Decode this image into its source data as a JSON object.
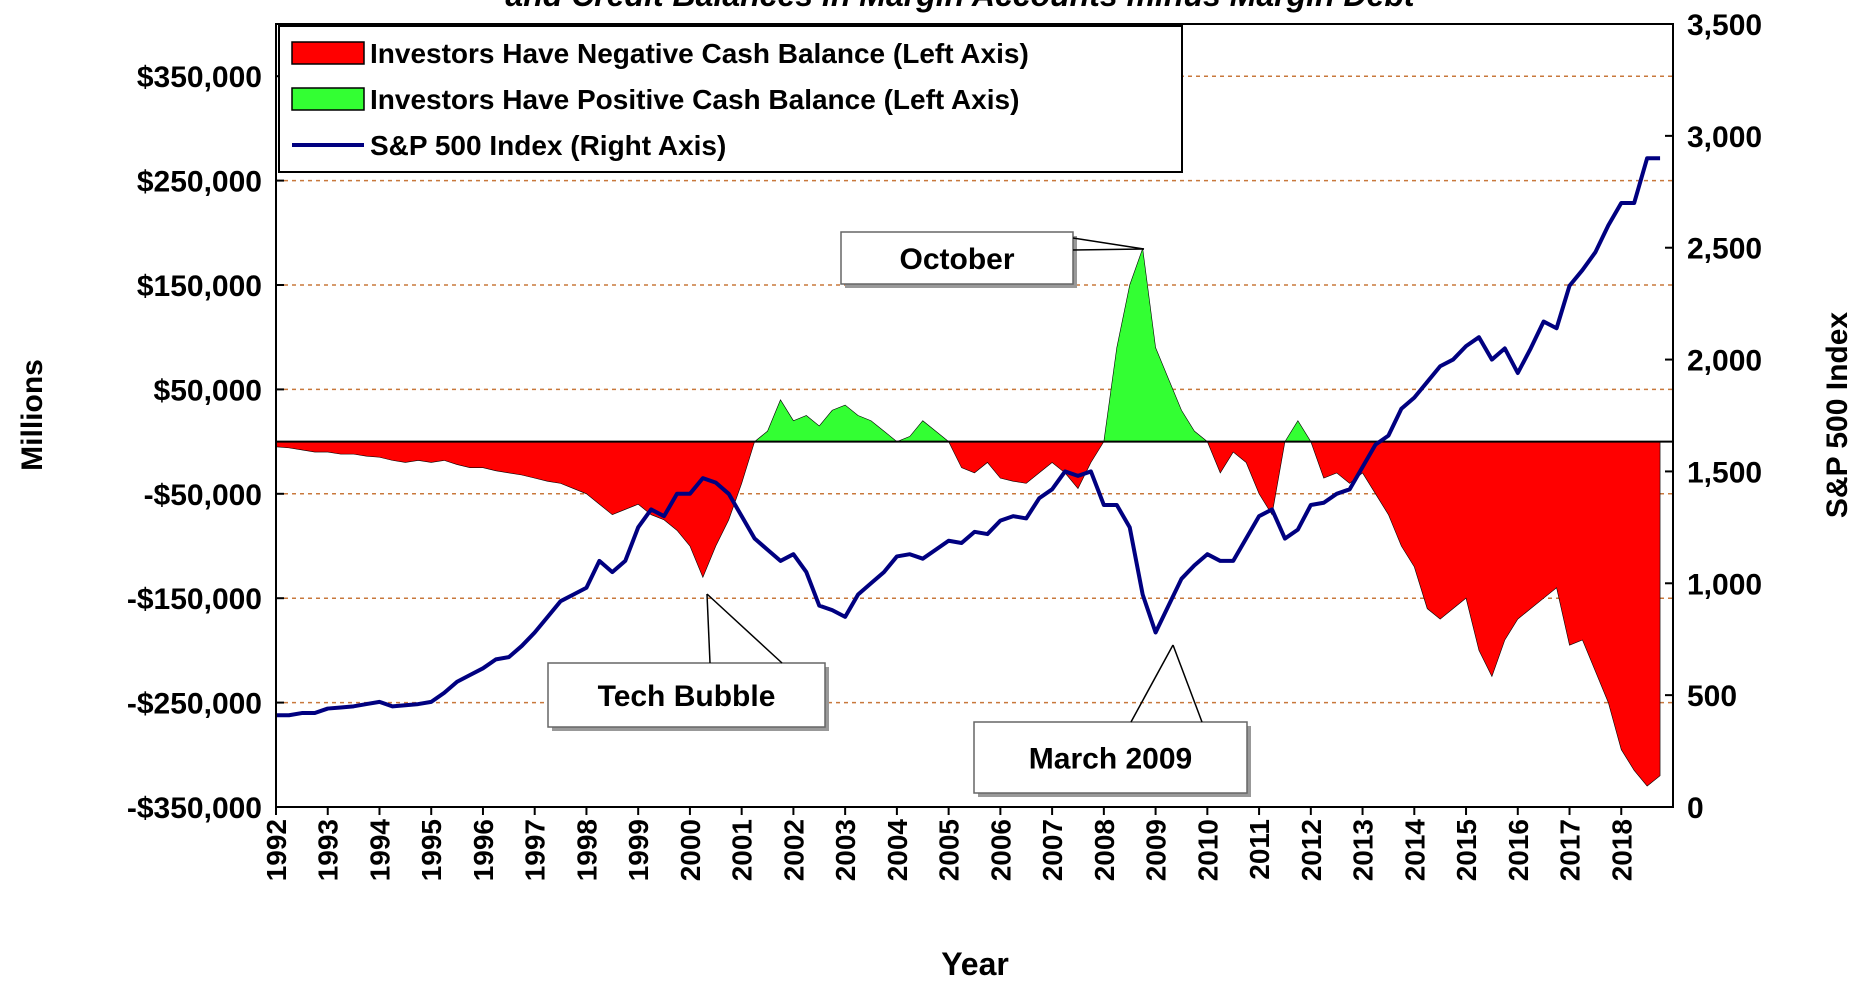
{
  "chart_data": {
    "type": "area-line",
    "title": "and Credit Balances in Margin Accounts minus Margin Debt",
    "xlabel": "Year",
    "ylabel": "Millions",
    "y2label": "S&P 500 Index",
    "annotations": [
      "October",
      "Tech Bubble",
      "March 2009"
    ],
    "legend": "top-left",
    "grid": true,
    "xlim": [
      1992,
      2019
    ],
    "xticks": [
      1992,
      1993,
      1994,
      1995,
      1996,
      1997,
      1998,
      1999,
      2000,
      2001,
      2002,
      2003,
      2004,
      2005,
      2006,
      2007,
      2008,
      2009,
      2010,
      2011,
      2012,
      2013,
      2014,
      2015,
      2016,
      2017,
      2018
    ],
    "ylim": [
      -350000,
      400000
    ],
    "yticks": [
      {
        "value": 350000,
        "label": "$350,000"
      },
      {
        "value": 250000,
        "label": "$250,000"
      },
      {
        "value": 150000,
        "label": "$150,000"
      },
      {
        "value": 50000,
        "label": "$50,000"
      },
      {
        "value": -50000,
        "label": "-$50,000"
      },
      {
        "value": -150000,
        "label": "-$150,000"
      },
      {
        "value": -250000,
        "label": "-$250,000"
      },
      {
        "value": -350000,
        "label": "-$350,000"
      }
    ],
    "y2lim": [
      0,
      3500
    ],
    "y2ticks": [
      0,
      500,
      {
        "value": 1000,
        "label": "1,000"
      },
      {
        "value": 1500,
        "label": "1,500"
      },
      {
        "value": 2000,
        "label": "2,000"
      },
      {
        "value": 2500,
        "label": "2,500"
      },
      {
        "value": 3000,
        "label": "3,000"
      },
      {
        "value": 3500,
        "label": "3,500"
      }
    ],
    "x": [
      1992,
      1992.25,
      1992.5,
      1992.75,
      1993,
      1993.25,
      1993.5,
      1993.75,
      1994,
      1994.25,
      1994.5,
      1994.75,
      1995,
      1995.25,
      1995.5,
      1995.75,
      1996,
      1996.25,
      1996.5,
      1996.75,
      1997,
      1997.25,
      1997.5,
      1997.75,
      1998,
      1998.25,
      1998.5,
      1998.75,
      1999,
      1999.25,
      1999.5,
      1999.75,
      2000,
      2000.25,
      2000.5,
      2000.75,
      2001,
      2001.25,
      2001.5,
      2001.75,
      2002,
      2002.25,
      2002.5,
      2002.75,
      2003,
      2003.25,
      2003.5,
      2003.75,
      2004,
      2004.25,
      2004.5,
      2004.75,
      2005,
      2005.25,
      2005.5,
      2005.75,
      2006,
      2006.25,
      2006.5,
      2006.75,
      2007,
      2007.25,
      2007.5,
      2007.75,
      2008,
      2008.25,
      2008.5,
      2008.75,
      2009,
      2009.25,
      2009.5,
      2009.75,
      2010,
      2010.25,
      2010.5,
      2010.75,
      2011,
      2011.25,
      2011.5,
      2011.75,
      2012,
      2012.25,
      2012.5,
      2012.75,
      2013,
      2013.25,
      2013.5,
      2013.75,
      2014,
      2014.25,
      2014.5,
      2014.75,
      2015,
      2015.25,
      2015.5,
      2015.75,
      2016,
      2016.25,
      2016.5,
      2016.75,
      2017,
      2017.25,
      2017.5,
      2017.75,
      2018,
      2018.25,
      2018.5,
      2018.75
    ],
    "series": [
      {
        "name": "Investors Have Negative Cash Balance (Left Axis)",
        "color": "#ff0000",
        "axis": "y",
        "kind": "area",
        "values": [
          -5000,
          -6000,
          -8000,
          -10000,
          -10000,
          -12000,
          -12000,
          -14000,
          -15000,
          -18000,
          -20000,
          -18000,
          -20000,
          -18000,
          -22000,
          -25000,
          -25000,
          -28000,
          -30000,
          -32000,
          -35000,
          -38000,
          -40000,
          -45000,
          -50000,
          -60000,
          -70000,
          -65000,
          -60000,
          -70000,
          -75000,
          -85000,
          -100000,
          -130000,
          -100000,
          -75000,
          -40000,
          0,
          null,
          null,
          null,
          null,
          null,
          null,
          null,
          null,
          null,
          null,
          0,
          null,
          null,
          null,
          0,
          -25000,
          -30000,
          -20000,
          -35000,
          -38000,
          -40000,
          -30000,
          -20000,
          -30000,
          -45000,
          -20000,
          0,
          null,
          null,
          null,
          null,
          null,
          null,
          null,
          0,
          -30000,
          -10000,
          -20000,
          -50000,
          -70000,
          0,
          null,
          0,
          -35000,
          -30000,
          -40000,
          -30000,
          -50000,
          -70000,
          -100000,
          -120000,
          -160000,
          -170000,
          -160000,
          -150000,
          -200000,
          -225000,
          -190000,
          -170000,
          -160000,
          -150000,
          -140000,
          -195000,
          -190000,
          -220000,
          -250000,
          -295000,
          -315000,
          -330000,
          -320000
        ]
      },
      {
        "name": "Investors Have Positive Cash Balance (Left Axis)",
        "color": "#33ff33",
        "axis": "y",
        "kind": "area",
        "values": [
          null,
          null,
          null,
          null,
          null,
          null,
          null,
          null,
          null,
          null,
          null,
          null,
          null,
          null,
          null,
          null,
          null,
          null,
          null,
          null,
          null,
          null,
          null,
          null,
          null,
          null,
          null,
          null,
          null,
          null,
          null,
          null,
          null,
          null,
          null,
          null,
          null,
          0,
          10000,
          40000,
          20000,
          25000,
          15000,
          30000,
          35000,
          25000,
          20000,
          10000,
          0,
          5000,
          20000,
          10000,
          0,
          null,
          null,
          null,
          null,
          null,
          null,
          null,
          null,
          null,
          null,
          null,
          0,
          90000,
          150000,
          185000,
          90000,
          60000,
          30000,
          10000,
          0,
          null,
          null,
          null,
          null,
          null,
          0,
          20000,
          0,
          null,
          null,
          null,
          null,
          null,
          null,
          null,
          null,
          null,
          null,
          null,
          null,
          null,
          null,
          null,
          null,
          null,
          null,
          null,
          null,
          null,
          null,
          null,
          null,
          null,
          null,
          null
        ]
      },
      {
        "name": "S&P 500 Index (Right Axis)",
        "color": "#000080",
        "axis": "y2",
        "kind": "line",
        "values": [
          410,
          410,
          420,
          420,
          440,
          445,
          450,
          460,
          470,
          450,
          455,
          460,
          470,
          510,
          560,
          590,
          620,
          660,
          670,
          720,
          780,
          850,
          920,
          950,
          980,
          1100,
          1050,
          1100,
          1250,
          1330,
          1300,
          1400,
          1400,
          1470,
          1450,
          1400,
          1300,
          1200,
          1150,
          1100,
          1130,
          1050,
          900,
          880,
          850,
          950,
          1000,
          1050,
          1120,
          1130,
          1110,
          1150,
          1190,
          1180,
          1230,
          1220,
          1280,
          1300,
          1290,
          1380,
          1420,
          1500,
          1480,
          1500,
          1350,
          1350,
          1250,
          950,
          780,
          900,
          1020,
          1080,
          1130,
          1100,
          1100,
          1200,
          1300,
          1330,
          1200,
          1240,
          1350,
          1360,
          1400,
          1420,
          1520,
          1620,
          1660,
          1780,
          1830,
          1900,
          1970,
          2000,
          2060,
          2100,
          2000,
          2050,
          1940,
          2050,
          2170,
          2140,
          2330,
          2400,
          2480,
          2600,
          2700,
          2700,
          2900,
          2900
        ]
      }
    ]
  }
}
